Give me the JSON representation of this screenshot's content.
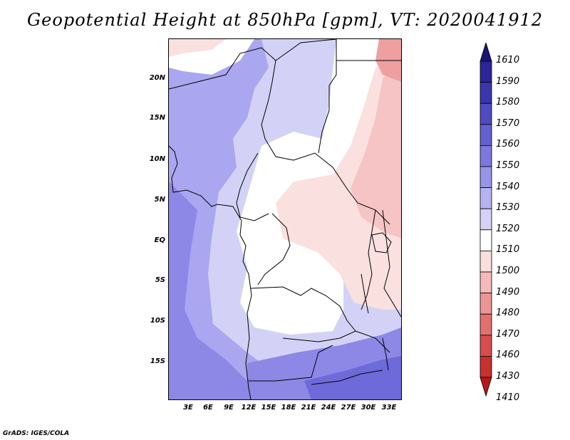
{
  "title": "Geopotential Height at 850hPa [gpm], VT: 2020041912",
  "credit": "GrADS: IGES/COLA",
  "map": {
    "lat_labels": [
      "20N",
      "15N",
      "10N",
      "5N",
      "EQ",
      "5S",
      "10S",
      "15S"
    ],
    "lon_labels": [
      "3E",
      "6E",
      "9E",
      "12E",
      "15E",
      "18E",
      "21E",
      "24E",
      "27E",
      "30E",
      "33E"
    ],
    "extent": {
      "lon_min": 0,
      "lon_max": 35,
      "lat_min": -20,
      "lat_max": 25
    }
  },
  "colorbar": {
    "levels": [
      "1610",
      "1590",
      "1580",
      "1570",
      "1560",
      "1550",
      "1540",
      "1530",
      "1520",
      "1510",
      "1500",
      "1490",
      "1480",
      "1470",
      "1460",
      "1430",
      "1410"
    ],
    "colors": [
      "#1a1478",
      "#2a2496",
      "#3a36ad",
      "#4f4bc0",
      "#6560cf",
      "#7c78de",
      "#9894e8",
      "#b6b3ef",
      "#d4d3f6",
      "#ffffff",
      "#fbdede",
      "#f5b9b9",
      "#ec9494",
      "#e27070",
      "#d84d4d",
      "#c93030",
      "#b51a1a"
    ]
  },
  "legend_colors": {
    "purple_strong": "#8d88e6",
    "purple_mid": "#aaa6ef",
    "purple_light": "#d3d2f6",
    "white": "#ffffff",
    "pink_light": "#fbe0e0",
    "pink_mid": "#f6c4c4",
    "pink_strong": "#ee9f9f",
    "deep_purple": "#6f6ad9"
  }
}
